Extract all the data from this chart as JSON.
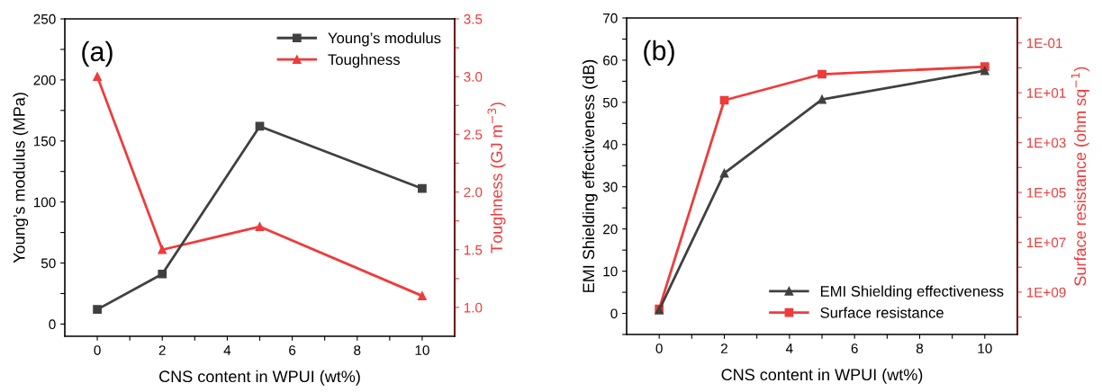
{
  "chart_data": [
    {
      "type": "line",
      "xlabel": "CNS content in WPUI (wt%)",
      "ylabel": "Young’s modulus (MPa)",
      "y2label": "Toughness (GJ m$^{−3}$)",
      "annotations": [
        "(a)"
      ],
      "x": [
        0,
        2,
        5,
        10
      ],
      "legend": "top right",
      "xlim": [
        -1,
        11
      ],
      "xticks": [
        0,
        {
          "value": 1,
          "label": null
        },
        2,
        {
          "value": 3,
          "label": null
        },
        4,
        {
          "value": 5,
          "label": null
        },
        6,
        {
          "value": 7,
          "label": null
        },
        8,
        {
          "value": 9,
          "label": null
        },
        10
      ],
      "ylim": [
        -10,
        250
      ],
      "yticks": [
        0,
        {
          "value": 25,
          "label": null
        },
        50,
        {
          "value": 75,
          "label": null
        },
        100,
        {
          "value": 125,
          "label": null
        },
        150,
        {
          "value": 175,
          "label": null
        },
        200,
        {
          "value": 225,
          "label": null
        },
        250
      ],
      "y2lim": [
        0.75,
        3.5
      ],
      "y2ticks": [
        {
          "value": 1.0,
          "label": "1.0"
        },
        {
          "value": 1.25,
          "label": null
        },
        {
          "value": 1.5,
          "label": "1.5"
        },
        {
          "value": 1.75,
          "label": null
        },
        {
          "value": 2.0,
          "label": "2.0"
        },
        {
          "value": 2.25,
          "label": null
        },
        {
          "value": 2.5,
          "label": "2.5"
        },
        {
          "value": 2.75,
          "label": null
        },
        {
          "value": 3.0,
          "label": "3.0"
        },
        {
          "value": 3.25,
          "label": null
        },
        {
          "value": 3.5,
          "label": "3.5"
        }
      ],
      "series": [
        {
          "name": "Young’s modulus",
          "color": "#404040",
          "marker": "square",
          "values": [
            12,
            41,
            162,
            111
          ]
        },
        {
          "name": "Toughness",
          "color": "#ef3b3b",
          "marker": "triangle",
          "axis": "y2",
          "values": [
            3.0,
            1.5,
            1.7,
            1.1
          ]
        }
      ]
    },
    {
      "type": "line",
      "xlabel": "CNS content in WPUI (wt%)",
      "ylabel": "EMI Shielding effectiveness (dB)",
      "y2label": "Surface resistance (ohm sq$^{−1}$)",
      "annotations": [
        "(b)"
      ],
      "x": [
        0,
        2,
        5,
        10
      ],
      "legend": "bottom right",
      "log": "y2",
      "xlim": [
        -1,
        11
      ],
      "xticks": [
        0,
        {
          "value": 1,
          "label": null
        },
        2,
        {
          "value": 3,
          "label": null
        },
        4,
        {
          "value": 5,
          "label": null
        },
        6,
        {
          "value": 7,
          "label": null
        },
        8,
        {
          "value": 9,
          "label": null
        },
        10
      ],
      "ylim": [
        -5,
        70
      ],
      "yticks": [
        {
          "value": -5,
          "label": null
        },
        0,
        {
          "value": 5,
          "label": null
        },
        10,
        {
          "value": 15,
          "label": null
        },
        20,
        {
          "value": 25,
          "label": null
        },
        30,
        {
          "value": 35,
          "label": null
        },
        40,
        {
          "value": 45,
          "label": null
        },
        50,
        {
          "value": 55,
          "label": null
        },
        60,
        {
          "value": 65,
          "label": null
        },
        70
      ],
      "y2lim": [
        50000000000,
        0.01
      ],
      "y2ticks": [
        {
          "value": 0.01,
          "label": null
        },
        {
          "value": 0.1,
          "label": "1E-01"
        },
        {
          "value": 1,
          "label": null
        },
        {
          "value": 10,
          "label": "1E+01"
        },
        {
          "value": 100,
          "label": null
        },
        {
          "value": 1000,
          "label": "1E+03"
        },
        {
          "value": 10000,
          "label": null
        },
        {
          "value": 100000,
          "label": "1E+05"
        },
        {
          "value": 1000000,
          "label": null
        },
        {
          "value": 10000000,
          "label": "1E+07"
        },
        {
          "value": 100000000,
          "label": null
        },
        {
          "value": 1000000000,
          "label": "1E+09"
        },
        {
          "value": 10000000000,
          "label": null
        }
      ],
      "series": [
        {
          "name": "EMI Shielding effectiveness",
          "color": "#404040",
          "marker": "triangle",
          "values": [
            0.8,
            33.2,
            50.7,
            57.5
          ]
        },
        {
          "name": "Surface resistance",
          "color": "#ef3b3b",
          "marker": "square",
          "axis": "y2",
          "values": [
            4700000000,
            20,
            1.8,
            0.9
          ]
        }
      ]
    }
  ]
}
